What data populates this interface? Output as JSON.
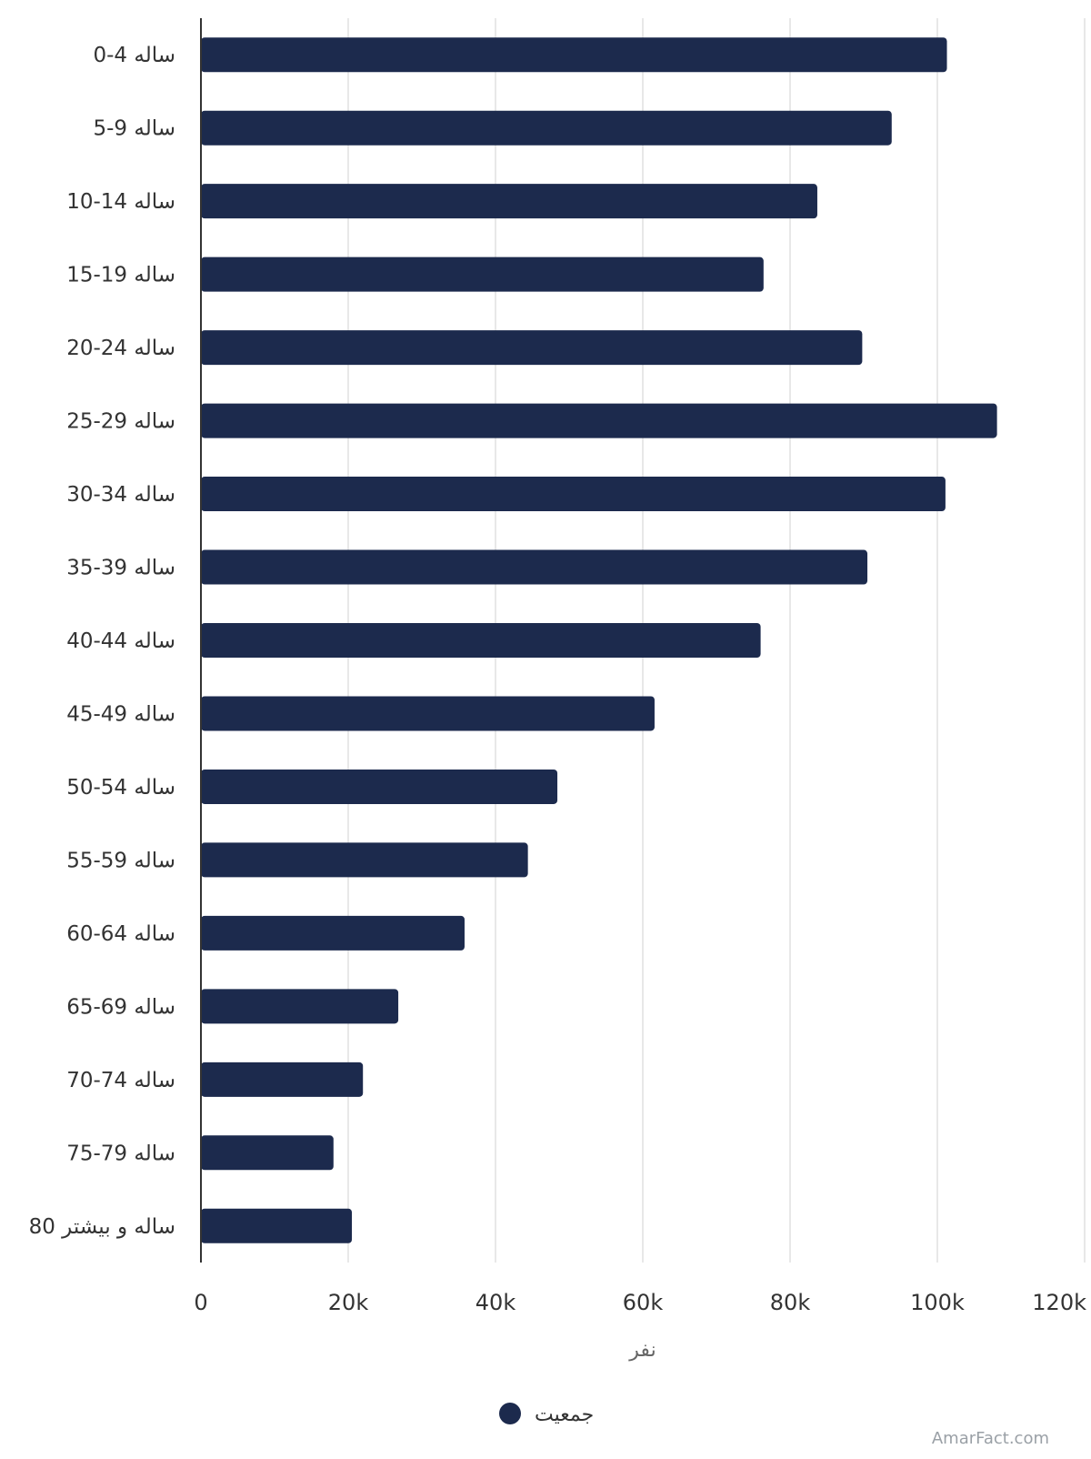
{
  "chart_data": {
    "type": "bar",
    "orientation": "horizontal",
    "title": "",
    "xlabel": "نفر",
    "ylabel": "",
    "xlim": [
      0,
      120000
    ],
    "x_ticks": [
      0,
      20000,
      40000,
      60000,
      80000,
      100000,
      120000
    ],
    "x_tick_labels": [
      "0",
      "20k",
      "40k",
      "60k",
      "80k",
      "100k",
      "120k"
    ],
    "grid": "vertical",
    "legend": {
      "position": "bottom-center",
      "entries": [
        "جمعیت"
      ]
    },
    "categories": [
      "0-4 ساله",
      "5-9 ساله",
      "10-14 ساله",
      "15-19 ساله",
      "20-24 ساله",
      "25-29 ساله",
      "30-34 ساله",
      "35-39 ساله",
      "40-44 ساله",
      "45-49 ساله",
      "50-54 ساله",
      "55-59 ساله",
      "60-64 ساله",
      "65-69 ساله",
      "70-74 ساله",
      "75-79 ساله",
      "80 ساله و بیشتر"
    ],
    "series": [
      {
        "name": "جمعیت",
        "color": "#1c2a4d",
        "values": [
          101300,
          93800,
          83700,
          76400,
          89800,
          108100,
          101100,
          90500,
          76000,
          61600,
          48400,
          44400,
          35800,
          26800,
          22000,
          18000,
          20500
        ]
      }
    ]
  },
  "colors": {
    "bar": "#1c2a4d",
    "grid": "#e0e0e0",
    "axis": "#333333",
    "text": "#333333"
  },
  "watermark": "AmarFact.com"
}
